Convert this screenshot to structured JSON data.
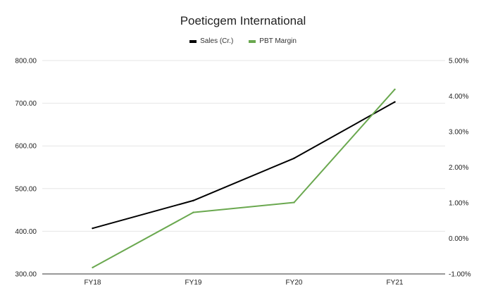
{
  "chart_data": {
    "type": "line",
    "title": "Poeticgem International",
    "categories": [
      "FY18",
      "FY19",
      "FY20",
      "FY21"
    ],
    "series": [
      {
        "name": "Sales (Cr.)",
        "axis": "left",
        "color": "#000000",
        "values": [
          407,
          472,
          571,
          703
        ]
      },
      {
        "name": "PBT Margin",
        "axis": "right",
        "color": "#6aa84f",
        "values": [
          -0.82,
          0.73,
          1.01,
          4.19
        ]
      }
    ],
    "y_left": {
      "ticks": [
        "800.00",
        "700.00",
        "600.00",
        "500.00",
        "400.00",
        "300.00"
      ],
      "ylim": [
        300,
        800
      ]
    },
    "y_right": {
      "ticks": [
        "5.00%",
        "4.00%",
        "3.00%",
        "2.00%",
        "1.00%",
        "0.00%",
        "-1.00%"
      ],
      "ylim": [
        -1,
        5
      ]
    },
    "grid": true,
    "legend_position": "top-center"
  }
}
